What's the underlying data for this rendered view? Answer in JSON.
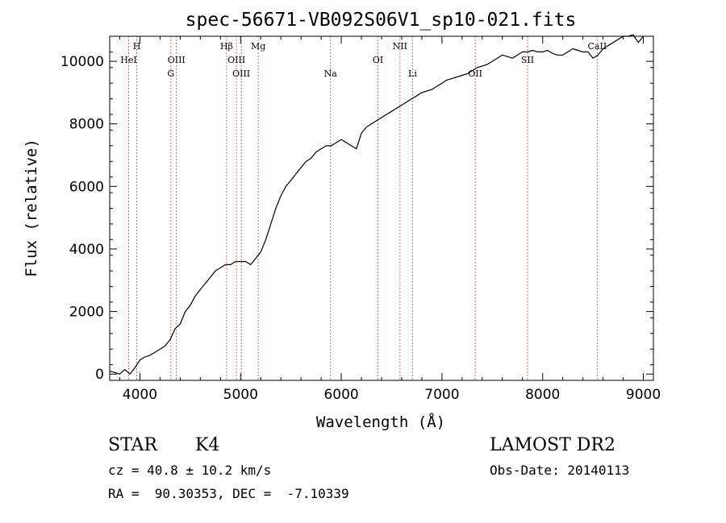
{
  "chart_data": {
    "type": "line",
    "title": "spec-56671-VB092S06V1_sp10-021.fits",
    "xlabel": "Wavelength (Å)",
    "ylabel": "Flux (relative)",
    "xlim": [
      3700,
      9100
    ],
    "ylim": [
      -200,
      10800
    ],
    "xticks": [
      4000,
      5000,
      6000,
      7000,
      8000,
      9000
    ],
    "yticks": [
      0,
      2000,
      4000,
      6000,
      8000,
      10000
    ],
    "grid": false,
    "line_color": "#000000",
    "marker_line_color": "#c0392b",
    "series": [
      {
        "x": [
          3700,
          3750,
          3800,
          3850,
          3900,
          3950,
          4000,
          4050,
          4100,
          4150,
          4200,
          4250,
          4300,
          4350,
          4400,
          4450,
          4500,
          4550,
          4600,
          4650,
          4700,
          4750,
          4800,
          4850,
          4900,
          4950,
          5000,
          5050,
          5100,
          5150,
          5200,
          5250,
          5300,
          5350,
          5400,
          5450,
          5500,
          5550,
          5600,
          5650,
          5700,
          5750,
          5800,
          5850,
          5900,
          5950,
          6000,
          6050,
          6100,
          6150,
          6200,
          6250,
          6300,
          6350,
          6400,
          6450,
          6500,
          6550,
          6600,
          6650,
          6700,
          6750,
          6800,
          6850,
          6900,
          6950,
          7000,
          7050,
          7100,
          7150,
          7200,
          7250,
          7300,
          7350,
          7400,
          7450,
          7500,
          7550,
          7600,
          7650,
          7700,
          7750,
          7800,
          7850,
          7900,
          7950,
          8000,
          8050,
          8100,
          8150,
          8200,
          8250,
          8300,
          8350,
          8400,
          8450,
          8500,
          8550,
          8600,
          8650,
          8700,
          8750,
          8800,
          8850,
          8900,
          8950,
          9000
        ],
        "y": [
          100,
          50,
          0,
          150,
          0,
          200,
          450,
          550,
          600,
          700,
          800,
          900,
          1100,
          1450,
          1600,
          2000,
          2200,
          2500,
          2700,
          2900,
          3100,
          3300,
          3400,
          3500,
          3500,
          3600,
          3600,
          3600,
          3500,
          3700,
          3900,
          4300,
          4800,
          5300,
          5700,
          6000,
          6200,
          6400,
          6600,
          6800,
          6900,
          7100,
          7200,
          7300,
          7300,
          7400,
          7500,
          7400,
          7300,
          7200,
          7700,
          7900,
          8000,
          8100,
          8200,
          8300,
          8400,
          8500,
          8600,
          8700,
          8800,
          8900,
          9000,
          9050,
          9100,
          9200,
          9300,
          9400,
          9450,
          9500,
          9550,
          9600,
          9700,
          9800,
          9850,
          9900,
          10000,
          10100,
          10200,
          10150,
          10100,
          10200,
          10300,
          10300,
          10350,
          10300,
          10300,
          10350,
          10250,
          10200,
          10200,
          10300,
          10400,
          10350,
          10300,
          10300,
          10100,
          10200,
          10400,
          10500,
          10600,
          10700,
          10800,
          10800,
          10850,
          10600,
          10800
        ]
      }
    ],
    "markers": [
      {
        "label": "HeI",
        "x": 3888,
        "row": 2
      },
      {
        "label": "H",
        "x": 3969,
        "row": 1
      },
      {
        "label": "OIII",
        "x": 4363,
        "row": 2
      },
      {
        "label": "G",
        "x": 4307,
        "row": 3
      },
      {
        "label": "Hβ",
        "x": 4861,
        "row": 1
      },
      {
        "label": "OIII",
        "x": 4959,
        "row": 2
      },
      {
        "label": "OIII",
        "x": 5007,
        "row": 3
      },
      {
        "label": "Mg",
        "x": 5175,
        "row": 1
      },
      {
        "label": "Na",
        "x": 5893,
        "row": 3
      },
      {
        "label": "OI",
        "x": 6364,
        "row": 2
      },
      {
        "label": "NII",
        "x": 6583,
        "row": 1
      },
      {
        "label": "Li",
        "x": 6708,
        "row": 3
      },
      {
        "label": "OII",
        "x": 7330,
        "row": 3
      },
      {
        "label": "SII",
        "x": 7850,
        "row": 2
      },
      {
        "label": "CaII",
        "x": 8542,
        "row": 1
      }
    ]
  },
  "info": {
    "class_type": "STAR",
    "subclass": "K4",
    "survey": "LAMOST DR2",
    "cz": "cz = 40.8 ± 10.2 km/s",
    "obs_date": "Obs-Date: 20140113",
    "coords": "RA =  90.30353, DEC =  -7.10339"
  }
}
